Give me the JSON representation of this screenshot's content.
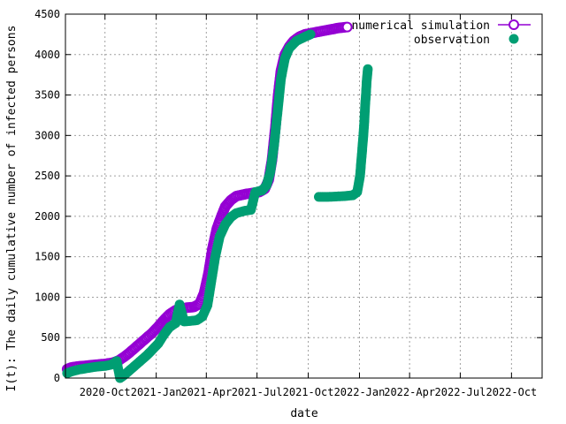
{
  "chart_data": {
    "type": "scatter",
    "title": "",
    "xlabel": "date",
    "ylabel": "I(t): The daily cumulative number of infected persons",
    "x_type": "date",
    "xlim": [
      "2020-07-22",
      "2022-11-25"
    ],
    "ylim": [
      0,
      4500
    ],
    "x_ticks": [
      {
        "date": "2020-10-01",
        "label": "2020-Oct"
      },
      {
        "date": "2021-01-01",
        "label": "2021-Jan"
      },
      {
        "date": "2021-04-01",
        "label": "2021-Apr"
      },
      {
        "date": "2021-07-01",
        "label": "2021-Jul"
      },
      {
        "date": "2021-10-01",
        "label": "2021-Oct"
      },
      {
        "date": "2022-01-01",
        "label": "2022-Jan"
      },
      {
        "date": "2022-04-01",
        "label": "2022-Apr"
      },
      {
        "date": "2022-07-01",
        "label": "2022-Jul"
      },
      {
        "date": "2022-10-01",
        "label": "2022-Oct"
      }
    ],
    "y_ticks": [
      "0",
      "500",
      "1000",
      "1500",
      "2000",
      "2500",
      "3000",
      "3500",
      "4000",
      "4500"
    ],
    "grid": true,
    "legend_position": "top-right",
    "series": [
      {
        "name": "numerical simulation",
        "marker": "open-circle-line",
        "color": "#9400d3",
        "points": [
          [
            "2020-07-25",
            110
          ],
          [
            "2020-08-01",
            130
          ],
          [
            "2020-08-15",
            145
          ],
          [
            "2020-09-01",
            155
          ],
          [
            "2020-09-15",
            165
          ],
          [
            "2020-10-01",
            175
          ],
          [
            "2020-10-15",
            190
          ],
          [
            "2020-10-25",
            215
          ],
          [
            "2020-11-05",
            265
          ],
          [
            "2020-11-15",
            320
          ],
          [
            "2020-11-25",
            380
          ],
          [
            "2020-12-05",
            440
          ],
          [
            "2020-12-15",
            500
          ],
          [
            "2020-12-25",
            560
          ],
          [
            "2021-01-05",
            640
          ],
          [
            "2021-01-15",
            720
          ],
          [
            "2021-01-25",
            790
          ],
          [
            "2021-02-05",
            840
          ],
          [
            "2021-02-15",
            860
          ],
          [
            "2021-02-25",
            870
          ],
          [
            "2021-03-10",
            880
          ],
          [
            "2021-03-20",
            920
          ],
          [
            "2021-03-28",
            1050
          ],
          [
            "2021-04-05",
            1300
          ],
          [
            "2021-04-12",
            1600
          ],
          [
            "2021-04-20",
            1850
          ],
          [
            "2021-04-28",
            2000
          ],
          [
            "2021-05-05",
            2120
          ],
          [
            "2021-05-15",
            2200
          ],
          [
            "2021-05-25",
            2250
          ],
          [
            "2021-06-10",
            2275
          ],
          [
            "2021-06-25",
            2290
          ],
          [
            "2021-07-05",
            2300
          ],
          [
            "2021-07-15",
            2340
          ],
          [
            "2021-07-22",
            2450
          ],
          [
            "2021-07-28",
            2700
          ],
          [
            "2021-08-03",
            3100
          ],
          [
            "2021-08-08",
            3500
          ],
          [
            "2021-08-13",
            3800
          ],
          [
            "2021-08-20",
            4000
          ],
          [
            "2021-08-28",
            4100
          ],
          [
            "2021-09-05",
            4170
          ],
          [
            "2021-09-15",
            4220
          ],
          [
            "2021-09-25",
            4250
          ],
          [
            "2021-10-10",
            4270
          ],
          [
            "2021-10-25",
            4290
          ],
          [
            "2021-11-10",
            4310
          ],
          [
            "2021-11-25",
            4330
          ],
          [
            "2021-12-10",
            4340
          ]
        ]
      },
      {
        "name": "observation",
        "marker": "filled-circle",
        "color": "#009e73",
        "points": [
          [
            "2020-07-25",
            60
          ],
          [
            "2020-08-01",
            80
          ],
          [
            "2020-08-15",
            105
          ],
          [
            "2020-09-01",
            125
          ],
          [
            "2020-09-15",
            140
          ],
          [
            "2020-10-01",
            150
          ],
          [
            "2020-10-12",
            165
          ],
          [
            "2020-10-22",
            210
          ],
          [
            "2020-10-28",
            0
          ],
          [
            "2020-11-05",
            40
          ],
          [
            "2020-11-15",
            100
          ],
          [
            "2020-11-25",
            160
          ],
          [
            "2020-12-05",
            220
          ],
          [
            "2020-12-15",
            280
          ],
          [
            "2020-12-25",
            350
          ],
          [
            "2021-01-05",
            430
          ],
          [
            "2021-01-15",
            540
          ],
          [
            "2021-01-25",
            630
          ],
          [
            "2021-02-05",
            680
          ],
          [
            "2021-02-12",
            910
          ],
          [
            "2021-02-20",
            700
          ],
          [
            "2021-03-01",
            705
          ],
          [
            "2021-03-15",
            715
          ],
          [
            "2021-03-25",
            760
          ],
          [
            "2021-04-03",
            900
          ],
          [
            "2021-04-10",
            1200
          ],
          [
            "2021-04-17",
            1500
          ],
          [
            "2021-04-25",
            1750
          ],
          [
            "2021-05-05",
            1900
          ],
          [
            "2021-05-15",
            1990
          ],
          [
            "2021-05-25",
            2040
          ],
          [
            "2021-06-10",
            2070
          ],
          [
            "2021-06-20",
            2080
          ],
          [
            "2021-06-28",
            2300
          ],
          [
            "2021-07-10",
            2320
          ],
          [
            "2021-07-18",
            2380
          ],
          [
            "2021-07-25",
            2550
          ],
          [
            "2021-08-01",
            2900
          ],
          [
            "2021-08-07",
            3300
          ],
          [
            "2021-08-13",
            3700
          ],
          [
            "2021-08-20",
            3950
          ],
          [
            "2021-08-28",
            4080
          ],
          [
            "2021-09-10",
            4170
          ],
          [
            "2021-09-25",
            4220
          ],
          [
            "2021-10-05",
            4250
          ],
          [
            "2021-10-20",
            2240
          ],
          [
            "2021-11-05",
            2240
          ],
          [
            "2021-11-20",
            2245
          ],
          [
            "2021-12-05",
            2250
          ],
          [
            "2021-12-20",
            2260
          ],
          [
            "2021-12-28",
            2300
          ],
          [
            "2022-01-02",
            2500
          ],
          [
            "2022-01-05",
            2750
          ],
          [
            "2022-01-08",
            3000
          ],
          [
            "2022-01-10",
            3200
          ],
          [
            "2022-01-11",
            3350
          ],
          [
            "2022-01-13",
            3550
          ],
          [
            "2022-01-14",
            3680
          ],
          [
            "2022-01-16",
            3820
          ]
        ]
      }
    ]
  }
}
